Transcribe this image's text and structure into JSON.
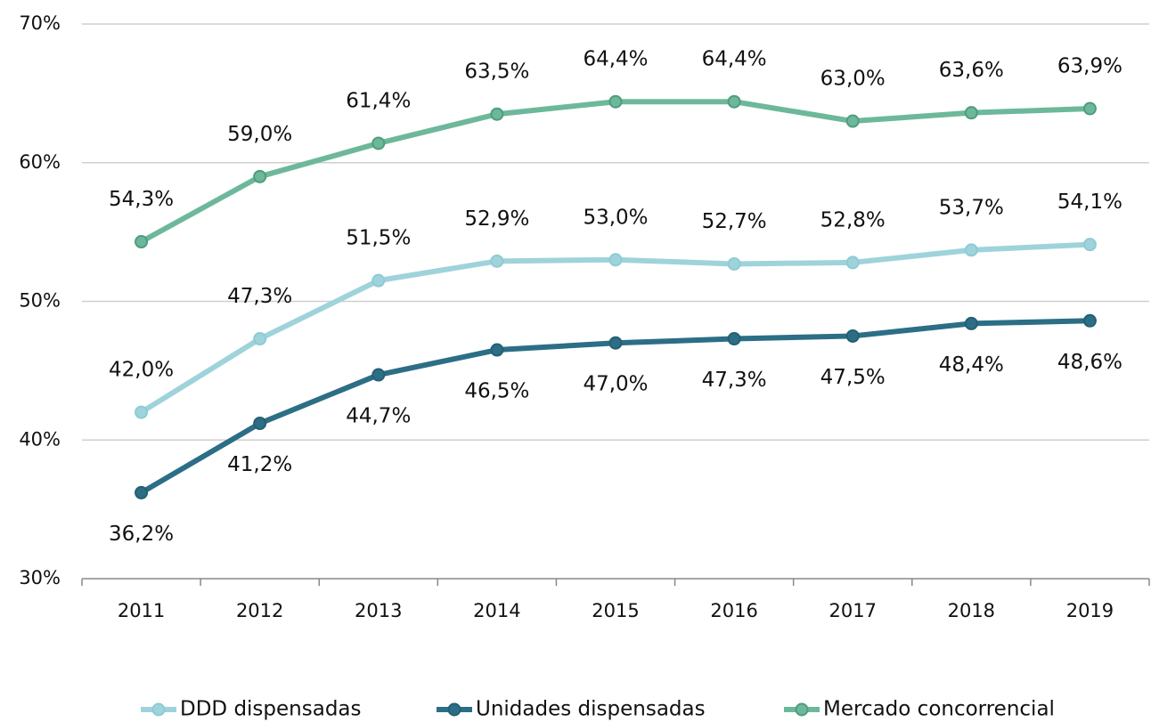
{
  "chart_data": {
    "type": "line",
    "categories": [
      "2011",
      "2012",
      "2013",
      "2014",
      "2015",
      "2016",
      "2017",
      "2018",
      "2019"
    ],
    "series": [
      {
        "name": "DDD dispensadas",
        "color": "#9fd3db",
        "marker_color": "#8ecbd4",
        "label_position": "above",
        "values": [
          42.0,
          47.3,
          51.5,
          52.9,
          53.0,
          52.7,
          52.8,
          53.7,
          54.1
        ],
        "value_labels": [
          "42,0%",
          "47,3%",
          "51,5%",
          "52,9%",
          "53,0%",
          "52,7%",
          "52,8%",
          "53,7%",
          "54,1%"
        ]
      },
      {
        "name": "Unidades dispensadas",
        "color": "#2c6e86",
        "marker_color": "#245f74",
        "label_position": "below",
        "values": [
          36.2,
          41.2,
          44.7,
          46.5,
          47.0,
          47.3,
          47.5,
          48.4,
          48.6
        ],
        "value_labels": [
          "36,2%",
          "41,2%",
          "44,7%",
          "46,5%",
          "47,0%",
          "47,3%",
          "47,5%",
          "48,4%",
          "48,6%"
        ]
      },
      {
        "name": "Mercado concorrencial",
        "color": "#6db89b",
        "marker_color": "#4f9c7e",
        "label_position": "above",
        "values": [
          54.3,
          59.0,
          61.4,
          63.5,
          64.4,
          64.4,
          63.0,
          63.6,
          63.9
        ],
        "value_labels": [
          "54,3%",
          "59,0%",
          "61,4%",
          "63,5%",
          "64,4%",
          "64,4%",
          "63,0%",
          "63,6%",
          "63,9%"
        ]
      }
    ],
    "ylim": [
      30,
      70
    ],
    "yticks": [
      {
        "value": 30,
        "label": "30%"
      },
      {
        "value": 40,
        "label": "40%"
      },
      {
        "value": 50,
        "label": "50%"
      },
      {
        "value": 60,
        "label": "60%"
      },
      {
        "value": 70,
        "label": "70%"
      }
    ],
    "grid": true,
    "legend": "bottom"
  }
}
